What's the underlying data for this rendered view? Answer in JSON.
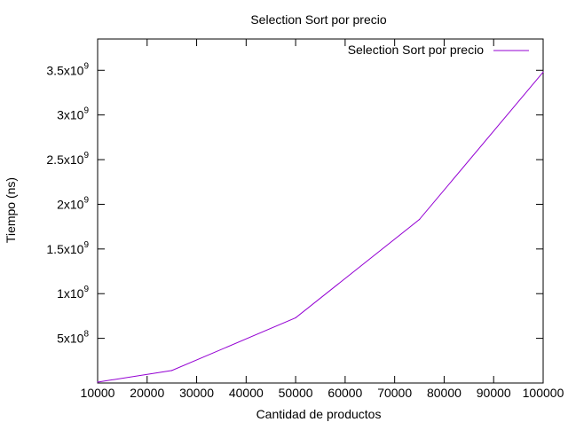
{
  "chart_data": {
    "type": "line",
    "title": "Selection Sort por precio",
    "xlabel": "Cantidad de productos",
    "ylabel": "Tiempo (ns)",
    "xlim": [
      10000,
      100000
    ],
    "ylim": [
      0,
      3850000000
    ],
    "x_ticks": [
      10000,
      20000,
      30000,
      40000,
      50000,
      60000,
      70000,
      80000,
      90000,
      100000
    ],
    "x_tick_labels": [
      "10000",
      "20000",
      "30000",
      "40000",
      "50000",
      "60000",
      "70000",
      "80000",
      "90000",
      "100000"
    ],
    "y_ticks": [
      {
        "value": 500000000,
        "mantissa": "5x10",
        "exponent": "8"
      },
      {
        "value": 1000000000,
        "mantissa": "1x10",
        "exponent": "9"
      },
      {
        "value": 1500000000,
        "mantissa": "1.5x10",
        "exponent": "9"
      },
      {
        "value": 2000000000,
        "mantissa": "2x10",
        "exponent": "9"
      },
      {
        "value": 2500000000,
        "mantissa": "2.5x10",
        "exponent": "9"
      },
      {
        "value": 3000000000,
        "mantissa": "3x10",
        "exponent": "9"
      },
      {
        "value": 3500000000,
        "mantissa": "3.5x10",
        "exponent": "9"
      }
    ],
    "grid": false,
    "legend_position": "top-right",
    "series": [
      {
        "name": "Selection Sort por precio",
        "color": "#9400d3",
        "x": [
          10000,
          25000,
          50000,
          75000,
          100000
        ],
        "y": [
          10000000,
          140000000,
          730000000,
          1830000000,
          3480000000
        ]
      }
    ]
  }
}
